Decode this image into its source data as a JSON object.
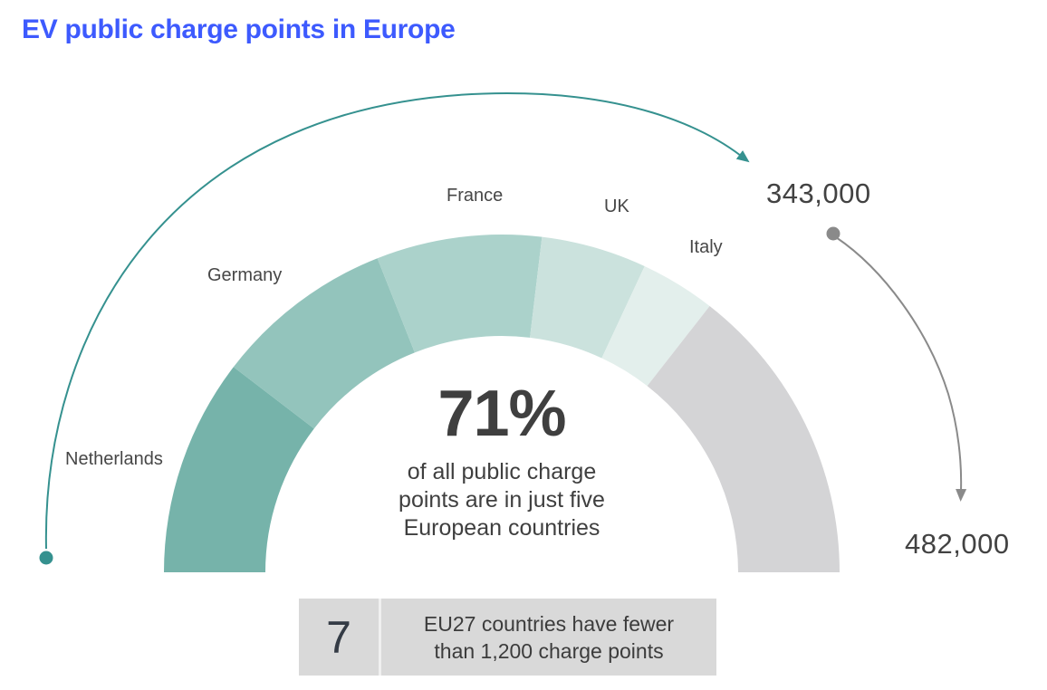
{
  "title": "EV public charge points in Europe",
  "colors": {
    "title_blue": "#3D5AFE",
    "arrow_teal": "#35918F",
    "arrow_gray": "#8A8A8A",
    "text_dark": "#3F3F3F",
    "callout_bg": "#D9D9D9"
  },
  "chart_data": {
    "type": "donut",
    "shape": "semicircle-gauge",
    "title": "EV public charge points in Europe",
    "legend_position": "labels-around-arc",
    "segments": [
      {
        "label": "Netherlands",
        "share_pct": 20.8,
        "color": "#76B3AA"
      },
      {
        "label": "Germany",
        "share_pct": 17.2,
        "color": "#93C4BC"
      },
      {
        "label": "France",
        "share_pct": 15.8,
        "color": "#ABD2CB"
      },
      {
        "label": "UK",
        "share_pct": 10.1,
        "color": "#CBE2DD"
      },
      {
        "label": "Italy",
        "share_pct": 7.2,
        "color": "#E3EFEC"
      },
      {
        "label": "",
        "share_pct": 28.9,
        "color": "#D4D4D6"
      }
    ],
    "center": {
      "value": "71%",
      "caption_lines": [
        "of all public charge",
        "points are in just five",
        "European countries"
      ]
    },
    "annotations": {
      "top_value": "343,000",
      "bottom_value": "482,000"
    }
  },
  "callout": {
    "value": "7",
    "line1": "EU27 countries have fewer",
    "line2": "than 1,200 charge points"
  }
}
